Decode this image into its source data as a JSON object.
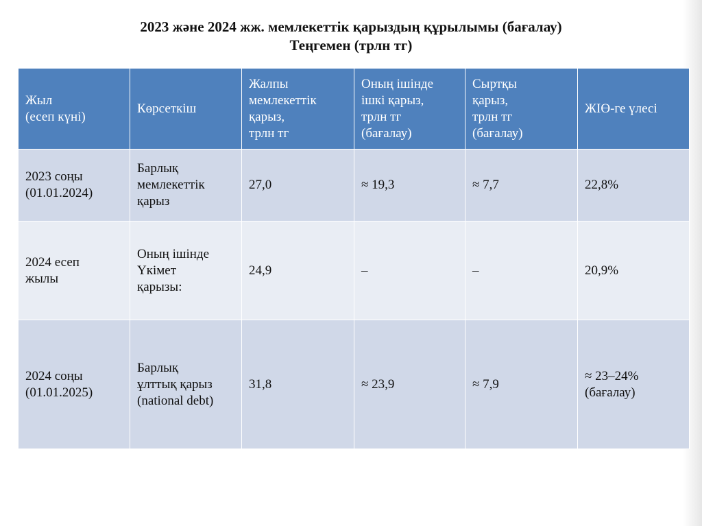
{
  "title": {
    "line1": "2023 және 2024 жж. мемлекеттік қарыздың құрылымы (бағалау)",
    "line2": "Теңгемен (трлн тг)"
  },
  "table": {
    "columns": [
      "Жыл\n (есеп күні)",
      "Көрсеткіш",
      "Жалпы\nмемлекеттік\nқарыз,\nтрлн тг",
      "Оның ішінде\nішкі қарыз,\nтрлн тг\n(бағалау)",
      "Сыртқы\nқарыз,\nтрлн тг\n(бағалау)",
      "ЖІӨ-ге үлесі"
    ],
    "rows": [
      {
        "year": "2023 соңы\n(01.01.2024)",
        "indicator": "Барлық\nмемлекеттік\nқарыз",
        "total": "27,0",
        "domestic": "≈ 19,3",
        "external": "≈ 7,7",
        "gdp_share": "22,8%"
      },
      {
        "year": " 2024 есеп\nжылы",
        "indicator": "Оның ішінде\nҮкімет\nқарызы:",
        "total": "24,9",
        "domestic": "–",
        "external": "–",
        "gdp_share": "20,9%"
      },
      {
        "year": "2024 соңы\n(01.01.2025)",
        "indicator": "Барлық\nұлттық қарыз\n(national debt)",
        "total": "31,8",
        "domestic": "≈ 23,9",
        "external": "≈ 7,9",
        "gdp_share": "≈ 23–24%\n(бағалау)"
      }
    ]
  },
  "colors": {
    "header_bg": "#4f81bd",
    "row_dark_bg": "#d0d8e8",
    "row_light_bg": "#e9edf4"
  }
}
